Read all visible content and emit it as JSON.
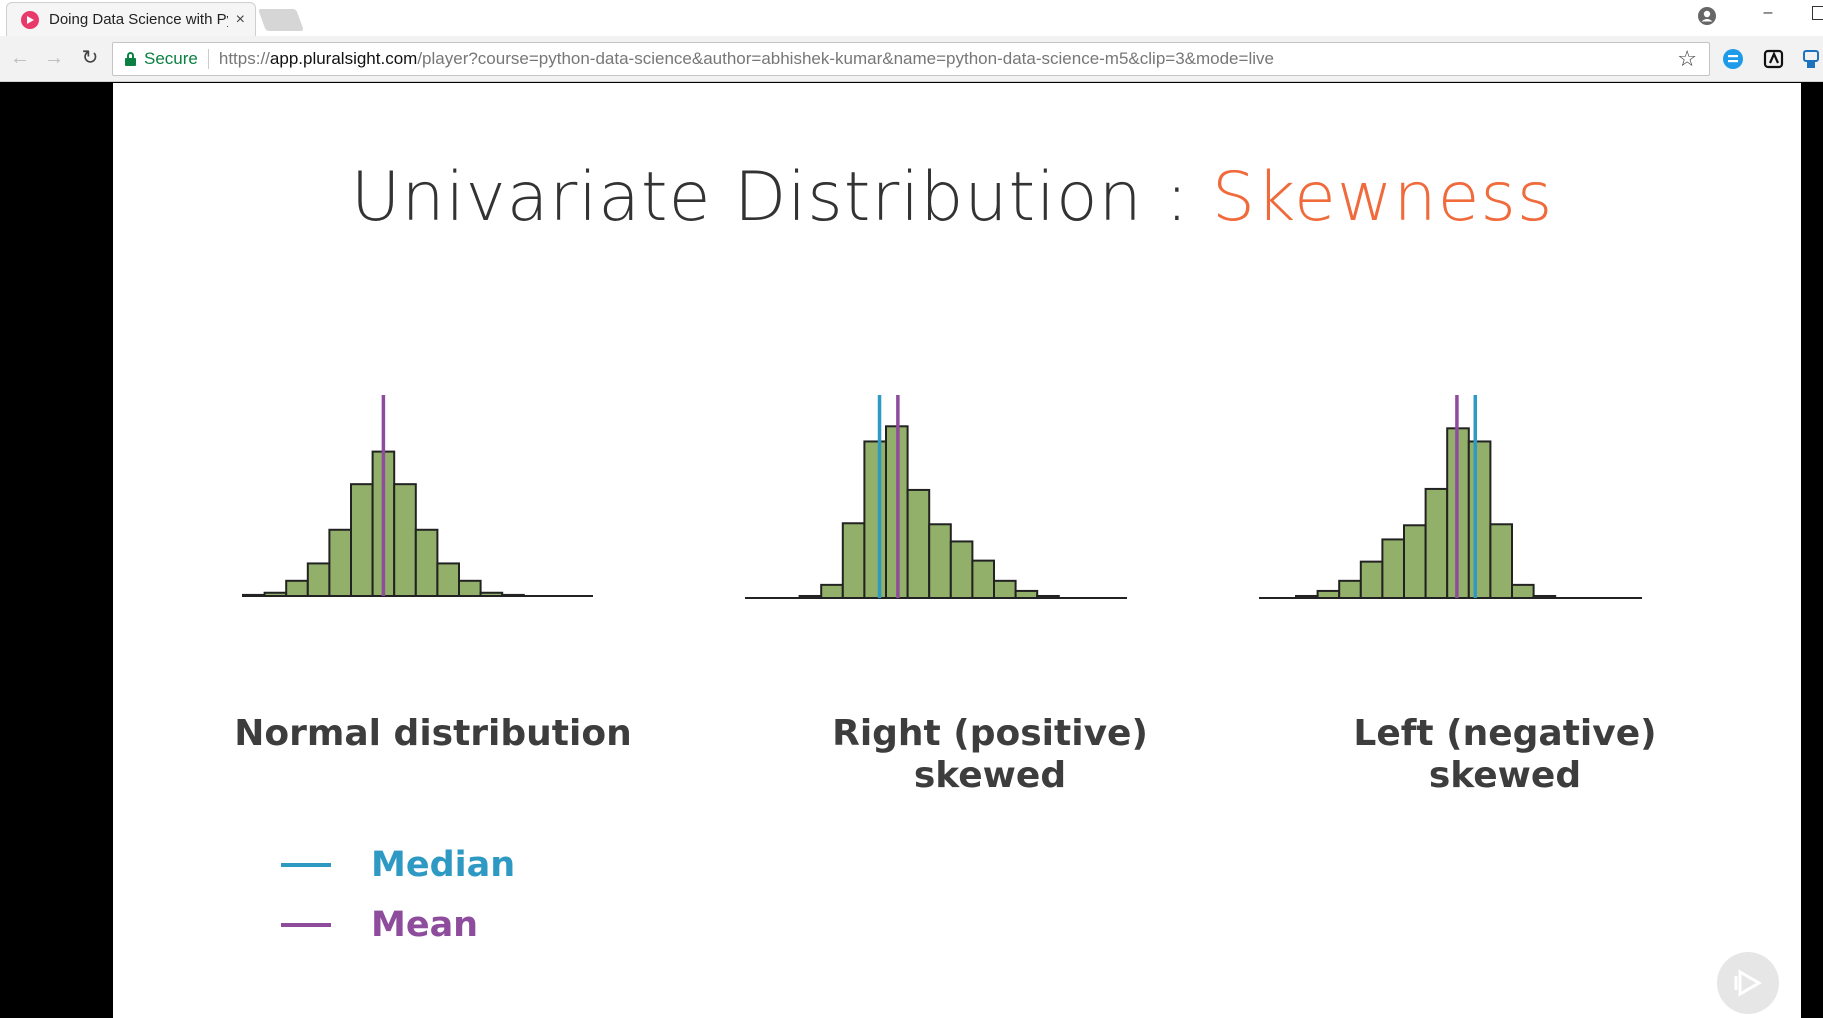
{
  "browser": {
    "tab_title": "Doing Data Science with Python",
    "close_glyph": "×",
    "minimize_glyph": "–",
    "secure_label": "Secure",
    "url_scheme": "https://",
    "url_host": "app.pluralsight.com",
    "url_path": "/player?course=python-data-science&author=abhishek-kumar&name=python-data-science-m5&clip=3&mode=live",
    "back_glyph": "←",
    "forward_glyph": "→",
    "reload_glyph": "↻",
    "star_glyph": "☆",
    "icons": [
      "favicon-icon",
      "close-icon",
      "account-icon",
      "minimize-icon",
      "maximize-icon",
      "back-icon",
      "forward-icon",
      "reload-icon",
      "lock-icon",
      "star-icon",
      "extension-icon"
    ]
  },
  "slide": {
    "title_main": "Univariate Distribution : ",
    "title_accent": "Skewness",
    "accent_color": "#f06a3c",
    "bar_color": "#93b06a",
    "captions": {
      "normal": "Normal distribution",
      "right_line1": "Right (positive)",
      "right_line2": "skewed",
      "left_line1": "Left (negative)",
      "left_line2": "skewed"
    },
    "legend": {
      "median_label": "Median",
      "median_color": "#2e9ac4",
      "mean_label": "Mean",
      "mean_color": "#8e4c9c"
    }
  },
  "chart_data": [
    {
      "type": "bar",
      "caption": "Normal distribution",
      "values": [
        1,
        3,
        14,
        30,
        61,
        103,
        133,
        103,
        61,
        30,
        14,
        3,
        1
      ],
      "mean_bin": 6.5,
      "median_bin": 6.5,
      "ylim": [
        0,
        140
      ]
    },
    {
      "type": "bar",
      "caption": "Right (positive) skewed",
      "values": [
        0,
        2,
        13,
        74,
        155,
        170,
        107,
        73,
        56,
        37,
        17,
        7,
        2
      ],
      "mean_bin": 5.55,
      "median_bin": 4.7,
      "ylim": [
        0,
        200
      ]
    },
    {
      "type": "bar",
      "caption": "Left (negative) skewed",
      "values": [
        2,
        7,
        17,
        36,
        58,
        72,
        108,
        168,
        155,
        73,
        13,
        2,
        0
      ],
      "mean_bin": 7.45,
      "median_bin": 8.3,
      "ylim": [
        0,
        200
      ]
    }
  ]
}
